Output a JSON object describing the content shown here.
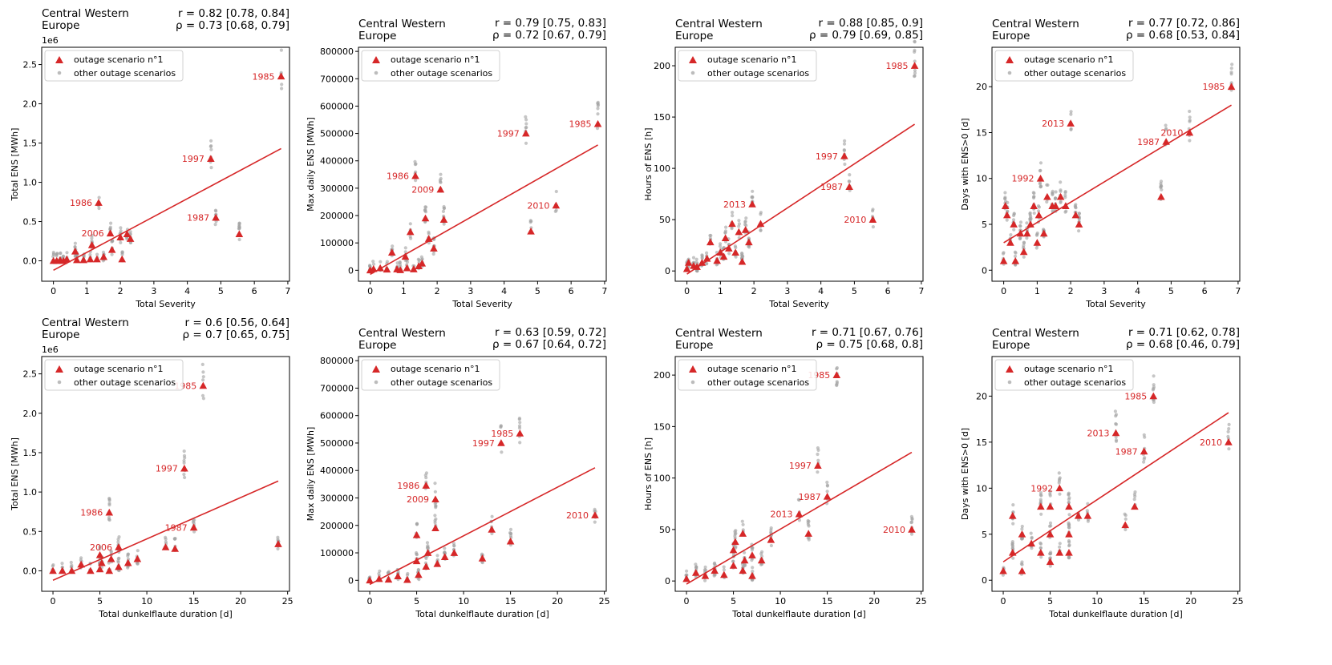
{
  "figure": {
    "region_title": [
      "Central Western",
      "Europe"
    ],
    "legend": {
      "scenario": "outage scenario n°1",
      "others": "other outage scenarios"
    },
    "colors": {
      "highlight": "#d62728",
      "others": "#a0a0a0",
      "fit": "#d62728",
      "axis": "#000000"
    }
  },
  "chart_data": [
    {
      "type": "scatter",
      "xlabel": "Total Severity",
      "ylabel": "Total ENS [MWh]",
      "offset_text": "1e6",
      "xlim": [
        -0.35,
        7.05
      ],
      "ylim": [
        -0.26,
        2.72
      ],
      "xticks": [
        0,
        1,
        2,
        3,
        4,
        5,
        6,
        7
      ],
      "yticks": [
        0,
        0.5,
        1,
        1.5,
        2,
        2.5
      ],
      "ytick_labels": [
        "0.0",
        "0.5",
        "1.0",
        "1.5",
        "2.0",
        "2.5"
      ],
      "stats": [
        "r = 0.82 [0.78, 0.84]",
        "ρ = 0.73 [0.68, 0.79]"
      ],
      "fit": [
        [
          0,
          -0.12
        ],
        [
          6.8,
          1.43
        ]
      ],
      "points": [
        [
          0,
          0
        ],
        [
          0.1,
          0
        ],
        [
          0.2,
          0.01
        ],
        [
          0.3,
          0
        ],
        [
          0.4,
          0.02
        ],
        [
          0.65,
          0.12
        ],
        [
          0.7,
          0.01
        ],
        [
          0.9,
          0.01
        ],
        [
          1.1,
          0.02
        ],
        [
          1.15,
          0.2
        ],
        [
          1.3,
          0.02
        ],
        [
          1.35,
          0.74
        ],
        [
          1.5,
          0.05
        ],
        [
          1.7,
          0.35
        ],
        [
          1.75,
          0.14
        ],
        [
          2.0,
          0.3
        ],
        [
          2.05,
          0.02
        ],
        [
          2.2,
          0.34
        ],
        [
          2.3,
          0.28
        ],
        [
          4.7,
          1.3
        ],
        [
          4.85,
          0.55
        ],
        [
          5.55,
          0.34
        ],
        [
          6.8,
          2.35
        ]
      ],
      "labels": [
        {
          "text": "1985",
          "x": 6.8,
          "y": 2.35
        },
        {
          "text": "1997",
          "x": 4.7,
          "y": 1.3
        },
        {
          "text": "1986",
          "x": 1.35,
          "y": 0.74
        },
        {
          "text": "1987",
          "x": 4.85,
          "y": 0.55
        },
        {
          "text": "2006",
          "x": 1.7,
          "y": 0.35
        }
      ]
    },
    {
      "type": "scatter",
      "xlabel": "Total Severity",
      "ylabel": "Max daily ENS [MWh]",
      "xlim": [
        -0.35,
        7.05
      ],
      "ylim": [
        -40000,
        815000
      ],
      "xticks": [
        0,
        1,
        2,
        3,
        4,
        5,
        6,
        7
      ],
      "yticks": [
        0,
        100000,
        200000,
        300000,
        400000,
        500000,
        600000,
        700000,
        800000
      ],
      "ytick_labels": [
        "0",
        "100000",
        "200000",
        "300000",
        "400000",
        "500000",
        "600000",
        "700000",
        "800000"
      ],
      "stats": [
        "r = 0.79 [0.75, 0.83]",
        "ρ = 0.72 [0.67, 0.79]"
      ],
      "fit": [
        [
          0,
          -15000
        ],
        [
          6.8,
          458000
        ]
      ],
      "points": [
        [
          0,
          0
        ],
        [
          0.1,
          5000
        ],
        [
          0.3,
          8000
        ],
        [
          0.5,
          3000
        ],
        [
          0.65,
          65000
        ],
        [
          0.8,
          4000
        ],
        [
          0.9,
          1000
        ],
        [
          1.05,
          50000
        ],
        [
          1.1,
          8000
        ],
        [
          1.2,
          140000
        ],
        [
          1.3,
          4000
        ],
        [
          1.35,
          345000
        ],
        [
          1.45,
          15000
        ],
        [
          1.55,
          25000
        ],
        [
          1.65,
          190000
        ],
        [
          1.75,
          115000
        ],
        [
          1.9,
          80000
        ],
        [
          2.1,
          295000
        ],
        [
          2.2,
          185000
        ],
        [
          4.65,
          500000
        ],
        [
          4.8,
          142000
        ],
        [
          5.55,
          237000
        ],
        [
          6.8,
          535000
        ]
      ],
      "labels": [
        {
          "text": "1997",
          "x": 4.65,
          "y": 500000
        },
        {
          "text": "1985",
          "x": 6.8,
          "y": 535000
        },
        {
          "text": "1986",
          "x": 1.35,
          "y": 345000
        },
        {
          "text": "2009",
          "x": 2.1,
          "y": 295000
        },
        {
          "text": "2010",
          "x": 5.55,
          "y": 237000
        }
      ]
    },
    {
      "type": "scatter",
      "xlabel": "Total Severity",
      "ylabel": "Hours of ENS [h]",
      "xlim": [
        -0.35,
        7.05
      ],
      "ylim": [
        -10,
        218
      ],
      "xticks": [
        0,
        1,
        2,
        3,
        4,
        5,
        6,
        7
      ],
      "yticks": [
        0,
        50,
        100,
        150,
        200
      ],
      "ytick_labels": [
        "0",
        "50",
        "100",
        "150",
        "200"
      ],
      "stats": [
        "r = 0.88 [0.85, 0.9]",
        "ρ = 0.79 [0.69, 0.85]"
      ],
      "fit": [
        [
          0,
          -3
        ],
        [
          6.8,
          143
        ]
      ],
      "points": [
        [
          0,
          2
        ],
        [
          0.05,
          8
        ],
        [
          0.2,
          5
        ],
        [
          0.3,
          4
        ],
        [
          0.45,
          8
        ],
        [
          0.6,
          12
        ],
        [
          0.7,
          28
        ],
        [
          0.9,
          10
        ],
        [
          1.0,
          18
        ],
        [
          1.1,
          14
        ],
        [
          1.15,
          32
        ],
        [
          1.25,
          22
        ],
        [
          1.35,
          46
        ],
        [
          1.45,
          18
        ],
        [
          1.55,
          38
        ],
        [
          1.65,
          9
        ],
        [
          1.75,
          40
        ],
        [
          1.85,
          28
        ],
        [
          1.95,
          65
        ],
        [
          2.2,
          46
        ],
        [
          4.7,
          112
        ],
        [
          4.85,
          82
        ],
        [
          5.55,
          50
        ],
        [
          6.8,
          200
        ]
      ],
      "labels": [
        {
          "text": "1985",
          "x": 6.8,
          "y": 200
        },
        {
          "text": "1997",
          "x": 4.7,
          "y": 112
        },
        {
          "text": "1987",
          "x": 4.85,
          "y": 82
        },
        {
          "text": "2010",
          "x": 5.55,
          "y": 50
        },
        {
          "text": "2013",
          "x": 1.95,
          "y": 65
        }
      ]
    },
    {
      "type": "scatter",
      "xlabel": "Total Severity",
      "ylabel": "Days with ENS>0 [d]",
      "xlim": [
        -0.35,
        7.05
      ],
      "ylim": [
        -1.2,
        24.3
      ],
      "xticks": [
        0,
        1,
        2,
        3,
        4,
        5,
        6,
        7
      ],
      "yticks": [
        0,
        5,
        10,
        15,
        20
      ],
      "ytick_labels": [
        "0",
        "5",
        "10",
        "15",
        "20"
      ],
      "stats": [
        "r = 0.77 [0.72, 0.86]",
        "ρ = 0.68 [0.53, 0.84]"
      ],
      "fit": [
        [
          0,
          3
        ],
        [
          6.8,
          18
        ]
      ],
      "points": [
        [
          0,
          1
        ],
        [
          0.05,
          7
        ],
        [
          0.1,
          6
        ],
        [
          0.2,
          3
        ],
        [
          0.3,
          5
        ],
        [
          0.35,
          1
        ],
        [
          0.5,
          4
        ],
        [
          0.6,
          2
        ],
        [
          0.7,
          4
        ],
        [
          0.8,
          5
        ],
        [
          0.9,
          7
        ],
        [
          1.0,
          3
        ],
        [
          1.05,
          6
        ],
        [
          1.1,
          10
        ],
        [
          1.2,
          4
        ],
        [
          1.3,
          8
        ],
        [
          1.45,
          7
        ],
        [
          1.55,
          7
        ],
        [
          1.7,
          8
        ],
        [
          1.85,
          7
        ],
        [
          2.0,
          16
        ],
        [
          2.15,
          6
        ],
        [
          2.25,
          5
        ],
        [
          4.7,
          8
        ],
        [
          4.85,
          14
        ],
        [
          5.55,
          15
        ],
        [
          6.8,
          20
        ]
      ],
      "labels": [
        {
          "text": "2013",
          "x": 2.0,
          "y": 16
        },
        {
          "text": "1992",
          "x": 1.1,
          "y": 10
        },
        {
          "text": "1985",
          "x": 6.8,
          "y": 20
        },
        {
          "text": "2010",
          "x": 5.55,
          "y": 15
        },
        {
          "text": "1987",
          "x": 4.85,
          "y": 14
        }
      ]
    },
    {
      "type": "scatter",
      "xlabel": "Total dunkelflaute duration [d]",
      "ylabel": "Total ENS [MWh]",
      "offset_text": "1e6",
      "xlim": [
        -1.2,
        25.2
      ],
      "ylim": [
        -0.26,
        2.72
      ],
      "xticks": [
        0,
        5,
        10,
        15,
        20,
        25
      ],
      "yticks": [
        0,
        0.5,
        1,
        1.5,
        2,
        2.5
      ],
      "ytick_labels": [
        "0.0",
        "0.5",
        "1.0",
        "1.5",
        "2.0",
        "2.5"
      ],
      "stats": [
        "r = 0.6 [0.56, 0.64]",
        "ρ = 0.7 [0.65, 0.75]"
      ],
      "fit": [
        [
          0,
          -0.12
        ],
        [
          24,
          1.14
        ]
      ],
      "points": [
        [
          0,
          0
        ],
        [
          1,
          0
        ],
        [
          2,
          0
        ],
        [
          3,
          0.08
        ],
        [
          4,
          0
        ],
        [
          5,
          0.02
        ],
        [
          5,
          0.2
        ],
        [
          5.2,
          0.1
        ],
        [
          6,
          0
        ],
        [
          6,
          0.74
        ],
        [
          6.2,
          0.15
        ],
        [
          7,
          0.05
        ],
        [
          7,
          0.3
        ],
        [
          8,
          0.1
        ],
        [
          9,
          0.15
        ],
        [
          12,
          0.3
        ],
        [
          13,
          0.28
        ],
        [
          14,
          1.3
        ],
        [
          15,
          0.55
        ],
        [
          16,
          2.35
        ],
        [
          24,
          0.34
        ]
      ],
      "labels": [
        {
          "text": "1985",
          "x": 16,
          "y": 2.35
        },
        {
          "text": "1997",
          "x": 14,
          "y": 1.3
        },
        {
          "text": "1986",
          "x": 6,
          "y": 0.74
        },
        {
          "text": "1987",
          "x": 15,
          "y": 0.55
        },
        {
          "text": "2006",
          "x": 7,
          "y": 0.3
        }
      ]
    },
    {
      "type": "scatter",
      "xlabel": "Total dunkelflaute duration [d]",
      "ylabel": "Max daily ENS [MWh]",
      "xlim": [
        -1.2,
        25.2
      ],
      "ylim": [
        -40000,
        815000
      ],
      "xticks": [
        0,
        5,
        10,
        15,
        20,
        25
      ],
      "yticks": [
        0,
        100000,
        200000,
        300000,
        400000,
        500000,
        600000,
        700000,
        800000
      ],
      "ytick_labels": [
        "0",
        "100000",
        "200000",
        "300000",
        "400000",
        "500000",
        "600000",
        "700000",
        "800000"
      ],
      "stats": [
        "r = 0.63 [0.59, 0.72]",
        "ρ = 0.67 [0.64, 0.72]"
      ],
      "fit": [
        [
          0,
          -15000
        ],
        [
          24,
          410000
        ]
      ],
      "points": [
        [
          0,
          0
        ],
        [
          1,
          5000
        ],
        [
          2,
          3000
        ],
        [
          3,
          15000
        ],
        [
          4,
          2000
        ],
        [
          5,
          165000
        ],
        [
          5,
          70000
        ],
        [
          5.2,
          20000
        ],
        [
          6,
          345000
        ],
        [
          6,
          50000
        ],
        [
          6.2,
          100000
        ],
        [
          7,
          295000
        ],
        [
          7,
          190000
        ],
        [
          7.2,
          60000
        ],
        [
          8,
          85000
        ],
        [
          9,
          100000
        ],
        [
          12,
          80000
        ],
        [
          13,
          185000
        ],
        [
          14,
          500000
        ],
        [
          15,
          142000
        ],
        [
          16,
          535000
        ],
        [
          24,
          237000
        ]
      ],
      "labels": [
        {
          "text": "1997",
          "x": 14,
          "y": 500000
        },
        {
          "text": "1985",
          "x": 16,
          "y": 535000
        },
        {
          "text": "1986",
          "x": 6,
          "y": 345000
        },
        {
          "text": "2009",
          "x": 7,
          "y": 295000
        },
        {
          "text": "2010",
          "x": 24,
          "y": 237000
        }
      ]
    },
    {
      "type": "scatter",
      "xlabel": "Total dunkelflaute duration [d]",
      "ylabel": "Hours of ENS [h]",
      "xlim": [
        -1.2,
        25.2
      ],
      "ylim": [
        -10,
        218
      ],
      "xticks": [
        0,
        5,
        10,
        15,
        20,
        25
      ],
      "yticks": [
        0,
        50,
        100,
        150,
        200
      ],
      "ytick_labels": [
        "0",
        "50",
        "100",
        "150",
        "200"
      ],
      "stats": [
        "r = 0.71 [0.67, 0.76]",
        "ρ = 0.75 [0.68, 0.8]"
      ],
      "fit": [
        [
          0,
          -3
        ],
        [
          24,
          125
        ]
      ],
      "points": [
        [
          0,
          2
        ],
        [
          1,
          8
        ],
        [
          2,
          5
        ],
        [
          3,
          10
        ],
        [
          4,
          6
        ],
        [
          5,
          30
        ],
        [
          5,
          15
        ],
        [
          5.2,
          38
        ],
        [
          6,
          46
        ],
        [
          6,
          10
        ],
        [
          6.2,
          20
        ],
        [
          7,
          25
        ],
        [
          7,
          5
        ],
        [
          8,
          20
        ],
        [
          9,
          40
        ],
        [
          12,
          65
        ],
        [
          13,
          46
        ],
        [
          14,
          112
        ],
        [
          15,
          82
        ],
        [
          16,
          200
        ],
        [
          24,
          50
        ]
      ],
      "labels": [
        {
          "text": "1985",
          "x": 16,
          "y": 200
        },
        {
          "text": "1997",
          "x": 14,
          "y": 112
        },
        {
          "text": "1987",
          "x": 15,
          "y": 82
        },
        {
          "text": "2013",
          "x": 12,
          "y": 65
        },
        {
          "text": "2010",
          "x": 24,
          "y": 50
        }
      ]
    },
    {
      "type": "scatter",
      "xlabel": "Total dunkelflaute duration [d]",
      "ylabel": "Days with ENS>0 [d]",
      "xlim": [
        -1.2,
        25.2
      ],
      "ylim": [
        -1.2,
        24.3
      ],
      "xticks": [
        0,
        5,
        10,
        15,
        20,
        25
      ],
      "yticks": [
        0,
        5,
        10,
        15,
        20
      ],
      "ytick_labels": [
        "0",
        "5",
        "10",
        "15",
        "20"
      ],
      "stats": [
        "r = 0.71 [0.62, 0.78]",
        "ρ = 0.68 [0.46, 0.79]"
      ],
      "fit": [
        [
          0,
          2
        ],
        [
          24,
          18.2
        ]
      ],
      "points": [
        [
          0,
          1
        ],
        [
          1,
          7
        ],
        [
          1,
          3
        ],
        [
          2,
          5
        ],
        [
          2,
          1
        ],
        [
          3,
          4
        ],
        [
          4,
          8
        ],
        [
          4,
          3
        ],
        [
          5,
          8
        ],
        [
          5,
          5
        ],
        [
          5,
          2
        ],
        [
          6,
          10
        ],
        [
          6,
          3
        ],
        [
          7,
          8
        ],
        [
          7,
          5
        ],
        [
          7,
          3
        ],
        [
          8,
          7
        ],
        [
          9,
          7
        ],
        [
          12,
          16
        ],
        [
          13,
          6
        ],
        [
          14,
          8
        ],
        [
          15,
          14
        ],
        [
          16,
          20
        ],
        [
          24,
          15
        ]
      ],
      "labels": [
        {
          "text": "2013",
          "x": 12,
          "y": 16
        },
        {
          "text": "1992",
          "x": 6,
          "y": 10
        },
        {
          "text": "1985",
          "x": 16,
          "y": 20
        },
        {
          "text": "1987",
          "x": 15,
          "y": 14
        },
        {
          "text": "2010",
          "x": 24,
          "y": 15
        }
      ]
    }
  ]
}
